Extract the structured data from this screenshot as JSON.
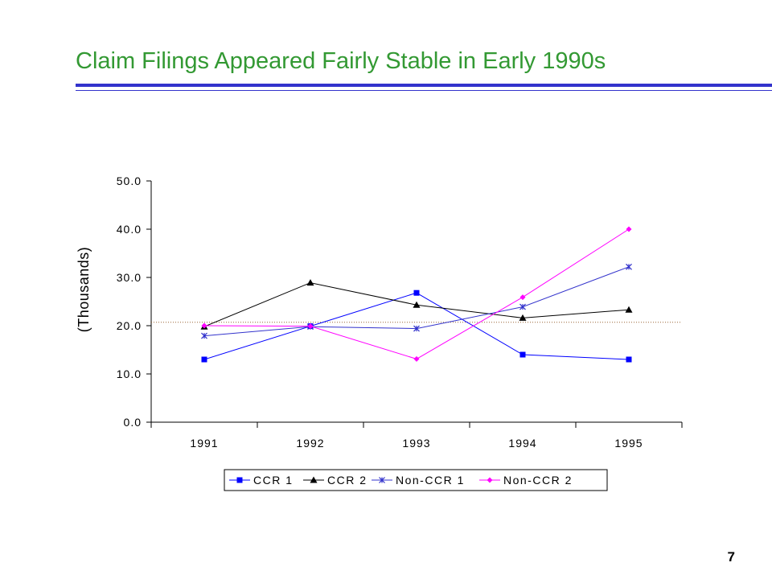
{
  "slide": {
    "title": "Claim Filings Appeared Fairly Stable in Early 1990s",
    "page_number": "7",
    "title_color": "#339933",
    "rule_color": "#3333cc"
  },
  "chart_data": {
    "type": "line",
    "title": "",
    "xlabel": "",
    "ylabel": "(Thousands)",
    "categories": [
      "1991",
      "1992",
      "1993",
      "1994",
      "1995"
    ],
    "ylim": [
      0,
      50
    ],
    "yticks": [
      "0.0",
      "10.0",
      "20.0",
      "30.0",
      "40.0",
      "50.0"
    ],
    "reference_line": {
      "y": 20.7,
      "color": "#996633",
      "style": "dotted"
    },
    "grid": false,
    "legend_position": "bottom",
    "series": [
      {
        "name": "CCR 1",
        "values": [
          13.0,
          19.9,
          26.8,
          14.0,
          13.0
        ],
        "color": "#0000ff",
        "marker": "square"
      },
      {
        "name": "CCR 2",
        "values": [
          19.8,
          28.9,
          24.3,
          21.6,
          23.3
        ],
        "color": "#000000",
        "marker": "triangle"
      },
      {
        "name": "Non-CCR 1",
        "values": [
          17.9,
          19.8,
          19.4,
          23.9,
          32.2
        ],
        "color": "#3333cc",
        "marker": "star"
      },
      {
        "name": "Non-CCR 2",
        "values": [
          20.0,
          19.9,
          13.1,
          25.9,
          40.0
        ],
        "color": "#ff00ff",
        "marker": "diamond"
      }
    ]
  }
}
